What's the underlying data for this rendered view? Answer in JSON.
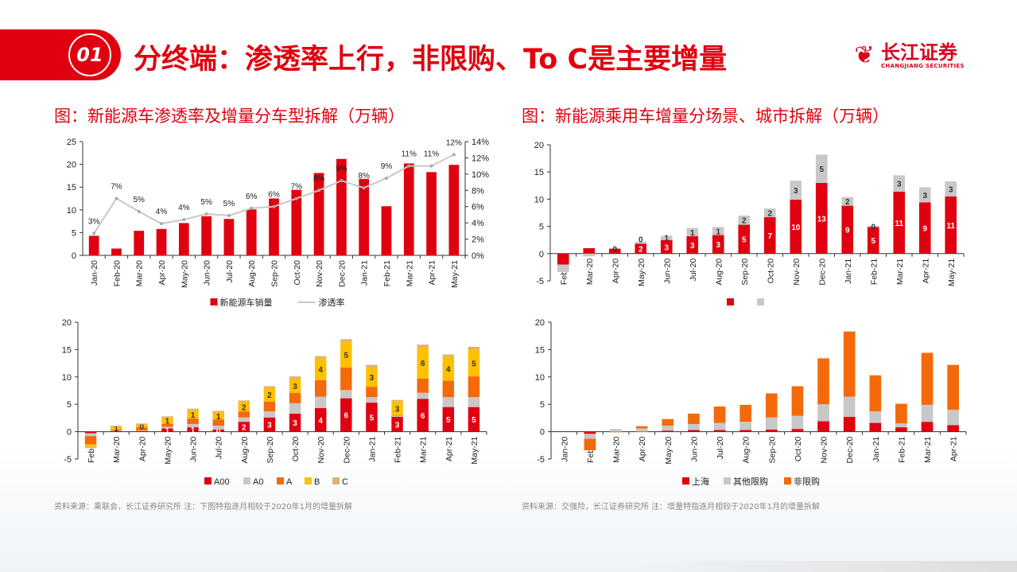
{
  "header": {
    "number": "01",
    "title": "分终端：渗透率上行，非限购、To C是主要增量",
    "logo_cn": "长江证券",
    "logo_en": "CHANGJIANG SECURITIES"
  },
  "left_title": "图：新能源车渗透率及增量分车型拆解（万辆）",
  "right_title": "图：新能源乘用车增量分场景、城市拆解（万辆）",
  "left_source": "资料来源：乘联会，长江证券研究所   注：下图特指逐月相较于2020年1月的增量拆解",
  "right_source": "资料来源：交强险，长江证券研究所    注：增量特指逐月相较于2020年1月的增量拆解",
  "chart_data": [
    {
      "type": "bar+line",
      "categories": [
        "Jan-20",
        "Feb-20",
        "Mar-20",
        "Apr-20",
        "May-20",
        "Jun-20",
        "Jul-20",
        "Aug-20",
        "Sep-20",
        "Oct-20",
        "Nov-20",
        "Dec-20",
        "Jan-21",
        "Feb-21",
        "Mar-21",
        "Apr-21",
        "May-21"
      ],
      "series": [
        {
          "name": "新能源车销量",
          "kind": "bar",
          "axis": "left",
          "color": "#e0000f",
          "values": [
            4.3,
            1.5,
            5.4,
            5.8,
            7.1,
            8.6,
            8.0,
            10.1,
            12.5,
            14.4,
            18.1,
            21.2,
            16.8,
            10.8,
            20.2,
            18.3,
            19.9
          ]
        },
        {
          "name": "渗透率",
          "kind": "line",
          "axis": "right",
          "color": "#c8c8c8",
          "values": [
            2.7,
            7.0,
            5.4,
            3.9,
            4.4,
            5.1,
            4.9,
            5.8,
            6.0,
            7.0,
            8.0,
            9.2,
            8.3,
            9.5,
            11.0,
            11.0,
            12.4
          ],
          "labels": [
            "3%",
            "7%",
            "5%",
            "4%",
            "4%",
            "5%",
            "5%",
            "6%",
            "6%",
            "7%",
            "8%",
            "9%",
            "8%",
            "9%",
            "11%",
            "11%",
            "12%"
          ]
        }
      ],
      "ylim": [
        0,
        25
      ],
      "yticks": [
        0,
        5,
        10,
        15,
        20,
        25
      ],
      "y2lim": [
        0,
        14
      ],
      "y2ticks": [
        "0%",
        "2%",
        "4%",
        "6%",
        "8%",
        "10%",
        "12%",
        "14%"
      ],
      "legend": "bottom"
    },
    {
      "type": "stacked-bar",
      "categories": [
        "Feb-20",
        "Mar-20",
        "Apr-20",
        "May-20",
        "Jun-20",
        "Jul-20",
        "Aug-20",
        "Sep-20",
        "Oct-20",
        "Nov-20",
        "Dec-20",
        "Jan-21",
        "Feb-21",
        "Mar-21",
        "Apr-21",
        "May-21"
      ],
      "series": [
        {
          "name": "",
          "color": "#e0000f",
          "labelColor": "#ffffff",
          "values": [
            -2.0,
            1.0,
            0.9,
            1.8,
            2.5,
            3.2,
            3.4,
            5.3,
            6.7,
            9.9,
            13.0,
            8.8,
            4.9,
            11.4,
            9.4,
            10.5
          ],
          "labels": [
            "",
            "",
            "",
            "2",
            "3",
            "3",
            "3",
            "5",
            "7",
            "10",
            "13",
            "9",
            "5",
            "11",
            "9",
            "11"
          ]
        },
        {
          "name": "",
          "color": "#c8c8c8",
          "labelColor": "#333333",
          "values": [
            -1.4,
            -0.5,
            0.1,
            0.4,
            0.8,
            1.5,
            1.5,
            1.7,
            1.6,
            3.5,
            5.2,
            1.6,
            0.2,
            3.0,
            2.8,
            2.8
          ],
          "labels": [
            "",
            "",
            "0",
            "0",
            "1",
            "1",
            "1",
            "2",
            "2",
            "3",
            "5",
            "2",
            "0",
            "3",
            "3",
            "3"
          ]
        }
      ],
      "ylim": [
        -5,
        20
      ],
      "yticks": [
        -5,
        0,
        5,
        10,
        15,
        20
      ],
      "legend": "bottom"
    },
    {
      "type": "stacked-bar",
      "categories": [
        "Feb-20",
        "Mar-20",
        "Apr-20",
        "May-20",
        "Jun-20",
        "Jul-20",
        "Aug-20",
        "Sep-20",
        "Oct-20",
        "Nov-20",
        "Dec-20",
        "Jan-21",
        "Feb-21",
        "Mar-21",
        "Apr-21",
        "May-21"
      ],
      "series": [
        {
          "name": "A00",
          "color": "#e0000f",
          "labelColor": "#ffffff",
          "values": [
            -0.3,
            0.1,
            0.1,
            0.6,
            0.8,
            0.4,
            1.8,
            2.6,
            3.3,
            4.3,
            6.1,
            5.3,
            2.7,
            6.0,
            4.5,
            4.5
          ],
          "labels": [
            "",
            "",
            "",
            "1",
            "1",
            "0",
            "2",
            "3",
            "3",
            "4",
            "6",
            "5",
            "3",
            "6",
            "5",
            "5"
          ]
        },
        {
          "name": "A0",
          "color": "#c8c8c8",
          "labelColor": "#333333",
          "values": [
            -0.5,
            0.1,
            0.1,
            0.3,
            0.6,
            0.7,
            0.8,
            1.1,
            1.9,
            2.1,
            1.5,
            1.0,
            0.2,
            1.1,
            1.8,
            1.8
          ],
          "labels": []
        },
        {
          "name": "A",
          "color": "#f46a0a",
          "labelColor": "#333333",
          "values": [
            -1.5,
            0.2,
            0.6,
            0.5,
            1.0,
            1.1,
            1.1,
            1.8,
            1.9,
            3.0,
            4.1,
            1.9,
            0.1,
            2.6,
            3.0,
            3.8
          ],
          "labels": []
        },
        {
          "name": "B",
          "color": "#ffc000",
          "labelColor": "#333333",
          "values": [
            -0.5,
            0.5,
            0.5,
            1.1,
            1.5,
            1.3,
            1.7,
            2.5,
            2.6,
            4.0,
            4.7,
            3.5,
            2.5,
            5.8,
            4.4,
            4.9
          ],
          "labels": [
            "",
            "1",
            "0",
            "1",
            "1",
            "1",
            "2",
            "2",
            "3",
            "4",
            "5",
            "3",
            "3",
            "6",
            "4",
            "5"
          ]
        },
        {
          "name": "C",
          "color": "#dcb46e",
          "labelColor": "#333333",
          "values": [
            -0.2,
            0.2,
            0.2,
            0.3,
            0.3,
            0.3,
            0.3,
            0.3,
            0.4,
            0.4,
            0.5,
            0.5,
            0.3,
            0.4,
            0.4,
            0.5
          ],
          "labels": []
        }
      ],
      "ylim": [
        -5,
        20
      ],
      "yticks": [
        -5,
        0,
        5,
        10,
        15,
        20
      ],
      "legend": "bottom"
    },
    {
      "type": "stacked-bar",
      "categories": [
        "Jan-20",
        "Feb-20",
        "Mar-20",
        "Apr-20",
        "May-20",
        "Jun-20",
        "Jul-20",
        "Aug-20",
        "Sep-20",
        "Oct-20",
        "Nov-20",
        "Dec-20",
        "Jan-21",
        "Feb-21",
        "Mar-21",
        "Apr-21"
      ],
      "series": [
        {
          "name": "上海",
          "color": "#e0000f",
          "values": [
            0,
            -0.4,
            0,
            0,
            0.2,
            0.3,
            0.3,
            0.3,
            0.4,
            0.5,
            1.9,
            2.7,
            1.6,
            0.8,
            1.8,
            1.2
          ]
        },
        {
          "name": "其他限购",
          "color": "#c8c8c8",
          "values": [
            0,
            -0.9,
            0.5,
            0.6,
            0.9,
            1.1,
            1.3,
            1.5,
            2.2,
            2.4,
            3.1,
            3.7,
            2.1,
            0.7,
            3.1,
            2.8
          ]
        },
        {
          "name": "非限购",
          "color": "#f46a0a",
          "values": [
            0,
            -2.1,
            -0.1,
            0.4,
            1.2,
            1.9,
            3.0,
            3.1,
            4.4,
            5.4,
            8.4,
            11.9,
            6.6,
            3.6,
            9.5,
            8.2
          ]
        }
      ],
      "ylim": [
        -5,
        20
      ],
      "yticks": [
        -5,
        0,
        5,
        10,
        15,
        20
      ],
      "legend": "bottom"
    }
  ]
}
